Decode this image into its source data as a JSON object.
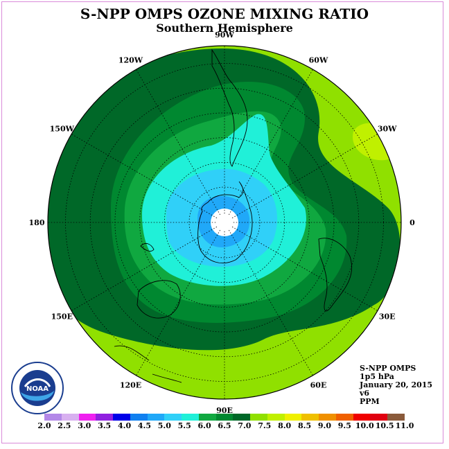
{
  "title": "S-NPP OMPS OZONE MIXING RATIO",
  "subtitle": "Southern Hemisphere",
  "longitude_labels": [
    {
      "text": "90W",
      "lon": -90
    },
    {
      "text": "60W",
      "lon": -60
    },
    {
      "text": "30W",
      "lon": -30
    },
    {
      "text": "0",
      "lon": 0
    },
    {
      "text": "30E",
      "lon": 30
    },
    {
      "text": "60E",
      "lon": 60
    },
    {
      "text": "90E",
      "lon": 90
    },
    {
      "text": "120E",
      "lon": 120
    },
    {
      "text": "150E",
      "lon": 150
    },
    {
      "text": "180",
      "lon": 180
    },
    {
      "text": "150W",
      "lon": -150
    },
    {
      "text": "120W",
      "lon": -120
    }
  ],
  "info": {
    "line1": "S-NPP OMPS",
    "line2": "1p5 hPa",
    "line3": "January 20, 2015",
    "line4": "v6",
    "line5": "PPM"
  },
  "colorbar": {
    "ticks": [
      "2.0",
      "2.5",
      "3.0",
      "3.5",
      "4.0",
      "4.5",
      "5.0",
      "5.5",
      "6.0",
      "6.5",
      "7.0",
      "7.5",
      "8.0",
      "8.5",
      "9.0",
      "9.5",
      "10.0",
      "10.5",
      "11.0"
    ],
    "colors": [
      "#b388e8",
      "#d8b0f0",
      "#f020f0",
      "#9020e0",
      "#0000e8",
      "#1080f0",
      "#20a8f8",
      "#30d0f8",
      "#20f0d8",
      "#10a840",
      "#008830",
      "#006828",
      "#90e000",
      "#c0f000",
      "#f0f000",
      "#f0c000",
      "#f09000",
      "#f06000",
      "#f00000",
      "#e00010",
      "#8a5a3a"
    ]
  },
  "map": {
    "field_levels": [
      {
        "level": "7.5-8.0",
        "color": "#90e000"
      },
      {
        "level": "7.0-7.5",
        "color": "#006828"
      },
      {
        "level": "6.5-7.0",
        "color": "#008830"
      },
      {
        "level": "6.0-6.5",
        "color": "#10a840"
      },
      {
        "level": "5.5-6.0",
        "color": "#20f0d8"
      },
      {
        "level": "5.0-5.5",
        "color": "#30d0f8"
      },
      {
        "level": "4.5-5.0",
        "color": "#20a8f8"
      },
      {
        "level": "8.0-8.5",
        "color": "#c0f000"
      }
    ]
  },
  "logo_text": "NOAA"
}
